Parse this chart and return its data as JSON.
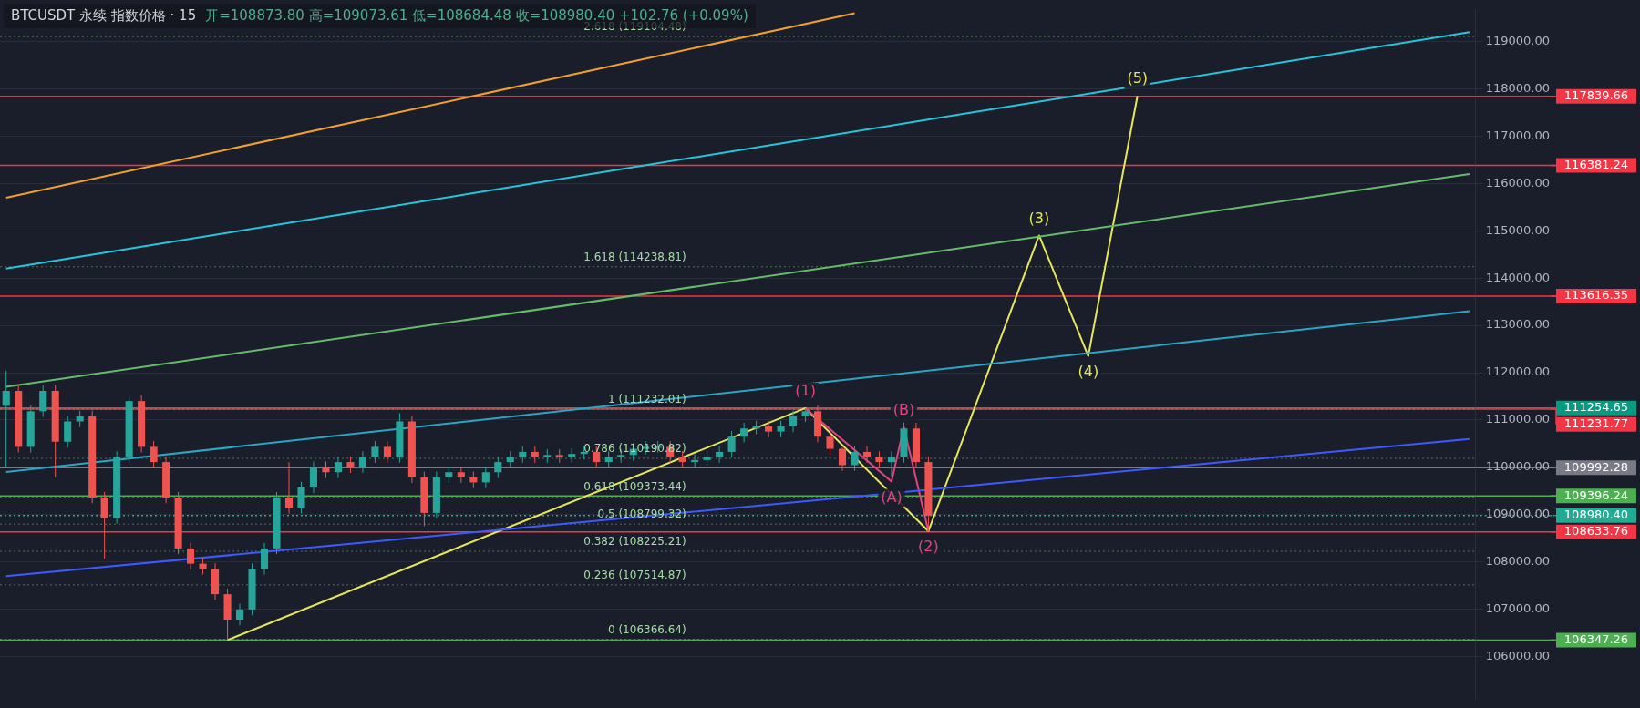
{
  "chart_data": {
    "type": "candlestick",
    "title": "BTCUSDT 永续 指数价格 · 15",
    "subtitle": "开=108873.80 高=109073.61 低=108684.48 收=108980.40 +102.76 (+0.09%)",
    "categories": [
      null,
      null,
      null,
      null,
      null,
      null,
      null,
      null,
      null,
      null,
      null,
      null,
      null,
      null,
      null,
      null,
      null,
      null,
      null,
      null,
      null,
      null,
      null,
      null,
      null,
      null,
      null,
      null,
      null,
      null,
      null,
      null,
      null,
      null,
      null,
      null,
      null,
      null,
      null,
      null,
      null,
      null,
      null,
      null,
      null,
      null,
      null,
      null,
      null,
      null,
      null,
      null,
      null,
      null,
      null,
      null,
      null,
      null,
      null,
      null,
      null,
      null,
      null,
      null,
      null,
      null,
      null,
      null,
      null,
      null,
      null,
      null,
      null,
      null,
      null,
      null,
      null,
      null,
      null,
      null,
      null,
      null,
      null,
      null,
      null,
      null,
      null,
      null,
      null,
      null,
      null,
      null,
      null,
      null,
      null,
      null,
      null,
      null,
      null,
      null,
      null,
      null,
      null,
      null,
      null,
      null,
      null,
      null,
      null,
      null,
      null,
      null,
      null,
      null,
      null,
      null,
      null,
      null,
      null,
      null
    ],
    "ohlc": [
      [
        111300,
        112040,
        110000,
        111615
      ],
      [
        111615,
        111735,
        110313,
        110433
      ],
      [
        110433,
        111305,
        110313,
        111185
      ],
      [
        111185,
        111735,
        111065,
        111615
      ],
      [
        111615,
        111735,
        109789,
        110541
      ],
      [
        110541,
        111090,
        110421,
        110970
      ],
      [
        110970,
        111198,
        110850,
        111078
      ],
      [
        111078,
        111198,
        109239,
        109359
      ],
      [
        109359,
        109479,
        108069,
        108929
      ],
      [
        108929,
        110338,
        108809,
        110218
      ],
      [
        110218,
        111508,
        110098,
        111400
      ],
      [
        111400,
        111520,
        110313,
        110433
      ],
      [
        110433,
        110553,
        109991,
        110111
      ],
      [
        110111,
        110231,
        109239,
        109359
      ],
      [
        109359,
        109479,
        108164,
        108284
      ],
      [
        108284,
        108404,
        107842,
        107962
      ],
      [
        107962,
        108082,
        107734,
        107854
      ],
      [
        107854,
        107974,
        107197,
        107317
      ],
      [
        107317,
        107437,
        106367,
        106780
      ],
      [
        106780,
        107115,
        106660,
        106995
      ],
      [
        106995,
        107974,
        106875,
        107854
      ],
      [
        107854,
        108404,
        107734,
        108284
      ],
      [
        108284,
        109479,
        108164,
        109359
      ],
      [
        109359,
        110111,
        109024,
        109144
      ],
      [
        109144,
        109694,
        109024,
        109574
      ],
      [
        109574,
        110123,
        109454,
        110003
      ],
      [
        110003,
        110123,
        109776,
        109896
      ],
      [
        109896,
        110231,
        109776,
        110111
      ],
      [
        110111,
        110231,
        109883,
        110003
      ],
      [
        110003,
        110338,
        109883,
        110218
      ],
      [
        110218,
        110553,
        110098,
        110433
      ],
      [
        110433,
        110553,
        110098,
        110218
      ],
      [
        110218,
        111143,
        110098,
        110970
      ],
      [
        110970,
        111090,
        109669,
        109789
      ],
      [
        109789,
        109909,
        108756,
        109036
      ],
      [
        109036,
        109909,
        108916,
        109789
      ],
      [
        109789,
        110016,
        109669,
        109896
      ],
      [
        109896,
        110016,
        109669,
        109789
      ],
      [
        109789,
        109909,
        109561,
        109681
      ],
      [
        109681,
        110016,
        109561,
        109896
      ],
      [
        109896,
        110231,
        109776,
        110111
      ],
      [
        110111,
        110338,
        109991,
        110218
      ],
      [
        110218,
        110446,
        110098,
        110326
      ],
      [
        110326,
        110446,
        110098,
        110218
      ],
      [
        110218,
        110381,
        110098,
        110261
      ],
      [
        110261,
        110381,
        110098,
        110218
      ],
      [
        110218,
        110403,
        110098,
        110283
      ],
      [
        110283,
        110446,
        110163,
        110326
      ],
      [
        110326,
        110446,
        109991,
        110111
      ],
      [
        110111,
        110338,
        109991,
        110218
      ],
      [
        110218,
        110381,
        110098,
        110261
      ],
      [
        110261,
        110510,
        110141,
        110390
      ],
      [
        110390,
        110553,
        110270,
        110433
      ],
      [
        110433,
        110553,
        110313,
        110433
      ],
      [
        110433,
        110553,
        110098,
        110218
      ],
      [
        110218,
        110338,
        109991,
        110111
      ],
      [
        110111,
        110274,
        109991,
        110154
      ],
      [
        110154,
        110338,
        110034,
        110218
      ],
      [
        110218,
        110446,
        110098,
        110326
      ],
      [
        110326,
        110768,
        110206,
        110648
      ],
      [
        110648,
        110940,
        110528,
        110820
      ],
      [
        110820,
        110983,
        110700,
        110863
      ],
      [
        110863,
        110983,
        110635,
        110755
      ],
      [
        110755,
        110983,
        110635,
        110863
      ],
      [
        110863,
        111198,
        110743,
        111078
      ],
      [
        111078,
        111232,
        110958,
        111185
      ],
      [
        111185,
        111305,
        110528,
        110648
      ],
      [
        110648,
        110768,
        110270,
        110390
      ],
      [
        110390,
        110420,
        109926,
        110046
      ],
      [
        110046,
        110446,
        109926,
        110326
      ],
      [
        110326,
        110446,
        110098,
        110218
      ],
      [
        110218,
        110338,
        109991,
        110111
      ],
      [
        110111,
        110338,
        109800,
        110218
      ],
      [
        110218,
        110950,
        110098,
        110820
      ],
      [
        110820,
        110940,
        109991,
        110111
      ],
      [
        110111,
        110231,
        108634,
        108980
      ],
      null,
      null,
      null,
      null,
      null,
      null,
      null,
      null,
      null,
      null,
      null,
      null,
      null,
      null,
      null,
      null,
      null,
      null,
      null,
      null,
      null,
      null,
      null,
      null,
      null,
      null,
      null,
      null,
      null,
      null,
      null,
      null,
      null,
      null,
      null,
      null,
      null,
      null,
      null,
      null,
      null,
      null,
      null,
      null
    ],
    "series": [
      {
        "type": "line",
        "color": "#f0a030",
        "values": [
          115700,
          null,
          null,
          null,
          null,
          null,
          null,
          null,
          null,
          null,
          null,
          null,
          null,
          null,
          null,
          null,
          null,
          null,
          null,
          null,
          null,
          null,
          null,
          null,
          null,
          null,
          null,
          null,
          null,
          null,
          null,
          null,
          null,
          null,
          null,
          null,
          null,
          null,
          null,
          null,
          null,
          null,
          null,
          null,
          null,
          null,
          null,
          null,
          null,
          null,
          null,
          null,
          null,
          null,
          null,
          null,
          null,
          null,
          null,
          null,
          null,
          null,
          null,
          null,
          null,
          null,
          null,
          null,
          null,
          119600,
          null,
          null,
          null,
          null,
          null,
          null,
          null,
          null,
          null,
          null,
          null,
          null,
          null,
          null,
          null,
          null,
          null,
          null,
          null,
          null,
          null,
          null,
          null,
          null,
          null,
          null,
          null,
          null,
          null,
          null,
          null,
          null,
          null,
          null,
          null,
          null,
          null,
          null,
          null,
          null,
          null,
          null,
          null,
          null,
          null,
          null,
          null,
          null,
          null,
          null
        ]
      },
      {
        "type": "line",
        "color": "#26c6da",
        "values": [
          114200,
          null,
          null,
          null,
          null,
          null,
          null,
          null,
          null,
          null,
          null,
          null,
          null,
          null,
          null,
          null,
          null,
          null,
          null,
          null,
          null,
          null,
          null,
          null,
          null,
          null,
          null,
          null,
          null,
          null,
          null,
          null,
          null,
          null,
          null,
          null,
          null,
          null,
          null,
          null,
          null,
          null,
          null,
          null,
          null,
          null,
          null,
          null,
          null,
          null,
          null,
          null,
          null,
          null,
          null,
          null,
          null,
          null,
          null,
          null,
          null,
          null,
          null,
          null,
          null,
          null,
          null,
          null,
          null,
          null,
          null,
          null,
          null,
          null,
          null,
          null,
          null,
          null,
          null,
          null,
          null,
          null,
          null,
          null,
          null,
          null,
          null,
          null,
          null,
          null,
          null,
          null,
          null,
          null,
          null,
          null,
          null,
          null,
          null,
          null,
          null,
          null,
          null,
          null,
          null,
          null,
          null,
          null,
          null,
          null,
          null,
          null,
          null,
          null,
          null,
          null,
          null,
          null,
          null,
          119200
        ]
      },
      {
        "type": "line",
        "color": "#66bb6a",
        "values": [
          111700,
          null,
          null,
          null,
          null,
          null,
          null,
          null,
          null,
          null,
          null,
          null,
          null,
          null,
          null,
          null,
          null,
          null,
          null,
          null,
          null,
          null,
          null,
          null,
          null,
          null,
          null,
          null,
          null,
          null,
          null,
          null,
          null,
          null,
          null,
          null,
          null,
          null,
          null,
          null,
          null,
          null,
          null,
          null,
          null,
          null,
          null,
          null,
          null,
          null,
          null,
          null,
          null,
          null,
          null,
          null,
          null,
          null,
          null,
          null,
          null,
          null,
          null,
          null,
          null,
          null,
          null,
          null,
          null,
          null,
          null,
          null,
          null,
          null,
          null,
          null,
          null,
          null,
          null,
          null,
          null,
          null,
          null,
          null,
          null,
          null,
          null,
          null,
          null,
          null,
          null,
          null,
          null,
          null,
          null,
          null,
          null,
          null,
          null,
          null,
          null,
          null,
          null,
          null,
          null,
          null,
          null,
          null,
          null,
          null,
          null,
          null,
          null,
          null,
          null,
          null,
          null,
          null,
          null,
          116200
        ]
      },
      {
        "type": "line",
        "color": "#2aa6c4",
        "values": [
          109900,
          null,
          null,
          null,
          null,
          null,
          null,
          null,
          null,
          null,
          null,
          null,
          null,
          null,
          null,
          null,
          null,
          null,
          null,
          null,
          null,
          null,
          null,
          null,
          null,
          null,
          null,
          null,
          null,
          null,
          null,
          null,
          null,
          null,
          null,
          null,
          null,
          null,
          null,
          null,
          null,
          null,
          null,
          null,
          null,
          null,
          null,
          null,
          null,
          null,
          null,
          null,
          null,
          null,
          null,
          null,
          null,
          null,
          null,
          null,
          null,
          null,
          null,
          null,
          null,
          null,
          null,
          null,
          null,
          null,
          null,
          null,
          null,
          null,
          null,
          null,
          null,
          null,
          null,
          null,
          null,
          null,
          null,
          null,
          null,
          null,
          null,
          null,
          null,
          null,
          null,
          null,
          null,
          null,
          null,
          null,
          null,
          null,
          null,
          null,
          null,
          null,
          null,
          null,
          null,
          null,
          null,
          null,
          null,
          null,
          null,
          null,
          null,
          null,
          null,
          null,
          null,
          null,
          null,
          113300
        ]
      },
      {
        "type": "line",
        "color": "#3d5afe",
        "values": [
          107700,
          null,
          null,
          null,
          null,
          null,
          null,
          null,
          null,
          null,
          null,
          null,
          null,
          null,
          null,
          null,
          null,
          null,
          null,
          null,
          null,
          null,
          null,
          null,
          null,
          null,
          null,
          null,
          null,
          null,
          null,
          null,
          null,
          null,
          null,
          null,
          null,
          null,
          null,
          null,
          null,
          null,
          null,
          null,
          null,
          null,
          null,
          null,
          null,
          null,
          null,
          null,
          null,
          null,
          null,
          null,
          null,
          null,
          null,
          null,
          null,
          null,
          null,
          null,
          null,
          null,
          null,
          null,
          null,
          null,
          null,
          null,
          null,
          null,
          null,
          null,
          null,
          null,
          null,
          null,
          null,
          null,
          null,
          null,
          null,
          null,
          null,
          null,
          null,
          null,
          null,
          null,
          null,
          null,
          null,
          null,
          null,
          null,
          null,
          null,
          null,
          null,
          null,
          null,
          null,
          null,
          null,
          null,
          null,
          null,
          null,
          null,
          null,
          null,
          null,
          null,
          null,
          null,
          null,
          110600
        ]
      },
      {
        "type": "line",
        "color": "#e0457b",
        "values": [
          null,
          null,
          null,
          null,
          null,
          null,
          null,
          null,
          null,
          null,
          null,
          null,
          null,
          null,
          null,
          null,
          null,
          null,
          null,
          null,
          null,
          null,
          null,
          null,
          null,
          null,
          null,
          null,
          null,
          null,
          null,
          null,
          null,
          null,
          null,
          null,
          null,
          null,
          null,
          null,
          null,
          null,
          null,
          null,
          null,
          null,
          null,
          null,
          null,
          null,
          null,
          null,
          null,
          null,
          null,
          null,
          null,
          null,
          null,
          null,
          null,
          null,
          null,
          null,
          null,
          111250,
          null,
          null,
          null,
          null,
          null,
          null,
          109700,
          110850,
          null,
          108650,
          null,
          null,
          null,
          null,
          null,
          null,
          null,
          null,
          null,
          null,
          null,
          null,
          null,
          null,
          null,
          null,
          null,
          null,
          null,
          null,
          null,
          null,
          null,
          null,
          null,
          null,
          null,
          null,
          null,
          null,
          null,
          null,
          null,
          null,
          null,
          null,
          null,
          null,
          null,
          null,
          null,
          null,
          null,
          null
        ]
      },
      {
        "type": "line",
        "color": "#e6e65a",
        "values": [
          null,
          null,
          null,
          null,
          null,
          null,
          null,
          null,
          null,
          null,
          null,
          null,
          null,
          null,
          null,
          null,
          null,
          null,
          106350,
          null,
          null,
          null,
          null,
          null,
          null,
          null,
          null,
          null,
          null,
          null,
          null,
          null,
          null,
          null,
          null,
          null,
          null,
          null,
          null,
          null,
          null,
          null,
          null,
          null,
          null,
          null,
          null,
          null,
          null,
          null,
          null,
          null,
          null,
          null,
          null,
          null,
          null,
          null,
          null,
          null,
          null,
          null,
          null,
          null,
          null,
          111250,
          null,
          null,
          null,
          null,
          null,
          null,
          null,
          null,
          null,
          108650,
          null,
          null,
          null,
          null,
          null,
          null,
          null,
          null,
          114900,
          null,
          null,
          null,
          112350,
          null,
          null,
          null,
          117850,
          null,
          null,
          null,
          null,
          null,
          null,
          null,
          null,
          null,
          null,
          null,
          null,
          null,
          null,
          null,
          null,
          null,
          null,
          null,
          null,
          null,
          null,
          null,
          null,
          null,
          null,
          null
        ]
      }
    ],
    "ylim": [
      105120,
      119670
    ],
    "yticks": [
      {
        "value": 106000,
        "label": "106000.00"
      },
      {
        "value": 107000,
        "label": "107000.00"
      },
      {
        "value": 108000,
        "label": "108000.00"
      },
      {
        "value": 109000,
        "label": "109000.00"
      },
      {
        "value": 110000,
        "label": "110000.00"
      },
      {
        "value": 111000,
        "label": "111000.00"
      },
      {
        "value": 112000,
        "label": "112000.00"
      },
      {
        "value": 113000,
        "label": "113000.00"
      },
      {
        "value": 114000,
        "label": "114000.00"
      },
      {
        "value": 115000,
        "label": "115000.00"
      },
      {
        "value": 116000,
        "label": "116000.00"
      },
      {
        "value": 117000,
        "label": "117000.00"
      },
      {
        "value": 118000,
        "label": "118000.00"
      },
      {
        "value": 119000,
        "label": "119000.00"
      }
    ],
    "grid": "y",
    "tick_labels": "y",
    "ref_lines": [
      {
        "axis": "y",
        "value": 117839.66,
        "label": "117839.66",
        "color": "#f23645"
      },
      {
        "axis": "y",
        "value": 116381.24,
        "label": "116381.24",
        "color": "#f23645"
      },
      {
        "axis": "y",
        "value": 113616.35,
        "label": "113616.35",
        "color": "#f23645"
      },
      {
        "axis": "y",
        "value": 111254.65,
        "label": "111254.65",
        "color": "#089981"
      },
      {
        "axis": "y",
        "value": 111231.77,
        "label": "111231.77",
        "color": "#f23645"
      },
      {
        "axis": "y",
        "value": 109992.28,
        "label": "109992.28",
        "color": "#787b86"
      },
      {
        "axis": "y",
        "value": 109396.24,
        "label": "109396.24",
        "color": "#4caf50"
      },
      {
        "axis": "y",
        "value": 108980.4,
        "label": "108980.40",
        "color": "#22ab94",
        "line_style": "dotted"
      },
      {
        "axis": "y",
        "value": 108633.76,
        "label": "108633.76",
        "color": "#f23645"
      },
      {
        "axis": "y",
        "value": 106347.26,
        "label": "106347.26",
        "color": "#4caf50"
      },
      {
        "axis": "y",
        "value": 119104.48,
        "label": "2.618 (119104.48)"
      },
      {
        "axis": "y",
        "value": 114238.81,
        "label": "1.618 (114238.81)"
      },
      {
        "axis": "y",
        "value": 111232.01,
        "label": "1 (111232.01)"
      },
      {
        "axis": "y",
        "value": 110190.82,
        "label": "0.786 (110190.82)"
      },
      {
        "axis": "y",
        "value": 109373.44,
        "label": "0.618 (109373.44)"
      },
      {
        "axis": "y",
        "value": 108799.32,
        "label": "0.5 (108799.32)"
      },
      {
        "axis": "y",
        "value": 108225.21,
        "label": "0.382 (108225.21)"
      },
      {
        "axis": "y",
        "value": 107514.87,
        "label": "0.236 (107514.87)"
      },
      {
        "axis": "y",
        "value": 106366.64,
        "label": "0 (106366.64)"
      }
    ],
    "annotations": [
      {
        "text": "(1)",
        "y": 111250
      },
      {
        "text": "(2)",
        "y": 108650
      },
      {
        "text": "(3)",
        "y": 114900
      },
      {
        "text": "(4)",
        "y": 112350
      },
      {
        "text": "(5)",
        "y": 117850
      },
      {
        "text": "(A)",
        "y": 109700
      },
      {
        "text": "(B)",
        "y": 110850
      }
    ]
  }
}
